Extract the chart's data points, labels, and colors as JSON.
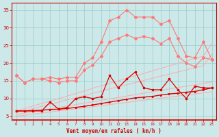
{
  "xlabel": "Vent moyen/en rafales ( km/h )",
  "bg_color": "#cce8e8",
  "grid_color": "#99cccc",
  "light_pink": "#ffaaaa",
  "pink": "#ff7777",
  "dark_red": "#dd0000",
  "axis_color": "#cc0000",
  "tick_color": "#cc0000",
  "label_color": "#cc0000",
  "ylim": [
    4,
    37
  ],
  "yticks": [
    5,
    10,
    15,
    20,
    25,
    30,
    35
  ],
  "hours": [
    0,
    1,
    2,
    3,
    4,
    5,
    6,
    7,
    8,
    9,
    10,
    11,
    12,
    13,
    14,
    15,
    16,
    17,
    18,
    19,
    20,
    21,
    22,
    23
  ],
  "pink_upper": [
    16.5,
    14.5,
    15.5,
    15.5,
    16,
    15.5,
    16,
    16,
    20,
    21.5,
    26,
    32,
    33,
    35,
    33,
    33,
    33,
    31,
    32,
    27,
    22,
    21.5,
    26,
    21
  ],
  "pink_lower": [
    16.5,
    14.5,
    15.5,
    15.5,
    15,
    14.5,
    15,
    15,
    18,
    19.5,
    22,
    26,
    27,
    28,
    27,
    27.5,
    27,
    25.5,
    27,
    22,
    20,
    19,
    21.5,
    21
  ],
  "smooth1": [
    6.5,
    7.2,
    7.9,
    8.6,
    9.3,
    10.0,
    10.7,
    11.4,
    12.1,
    12.9,
    13.6,
    14.3,
    15.0,
    15.7,
    16.4,
    17.1,
    17.8,
    18.5,
    19.2,
    19.9,
    20.6,
    21.3,
    22.0,
    25.5
  ],
  "smooth2": [
    6.0,
    6.6,
    7.2,
    7.8,
    8.4,
    9.0,
    9.6,
    10.2,
    10.8,
    11.5,
    12.1,
    12.7,
    13.3,
    13.9,
    14.5,
    15.1,
    15.7,
    16.3,
    16.9,
    17.5,
    18.1,
    18.7,
    19.3,
    22.5
  ],
  "smooth3": [
    5.5,
    5.9,
    6.3,
    6.7,
    7.1,
    7.5,
    7.9,
    8.3,
    8.7,
    9.1,
    9.5,
    9.9,
    10.3,
    10.7,
    11.1,
    11.5,
    11.9,
    12.3,
    12.7,
    13.1,
    13.5,
    13.9,
    14.3,
    14.7
  ],
  "smooth4": [
    5.0,
    5.3,
    5.6,
    5.9,
    6.2,
    6.5,
    6.8,
    7.1,
    7.4,
    7.7,
    8.0,
    8.3,
    8.6,
    8.9,
    9.2,
    9.5,
    9.8,
    10.1,
    10.4,
    10.7,
    11.0,
    11.3,
    11.6,
    11.9
  ],
  "red_jagged": [
    6.5,
    6.5,
    6.5,
    6.5,
    9.0,
    7.0,
    7.5,
    10.0,
    10.5,
    10.0,
    10.5,
    16.5,
    13.0,
    15.5,
    17.5,
    13.0,
    12.5,
    12.5,
    15.5,
    12.5,
    10.0,
    13.5,
    13.0,
    13.0
  ],
  "red_smooth": [
    6.5,
    6.5,
    6.6,
    6.7,
    6.9,
    7.0,
    7.2,
    7.5,
    7.8,
    8.2,
    8.6,
    9.0,
    9.4,
    9.8,
    10.2,
    10.4,
    10.6,
    11.0,
    11.3,
    11.5,
    11.8,
    12.0,
    12.5,
    13.0
  ]
}
